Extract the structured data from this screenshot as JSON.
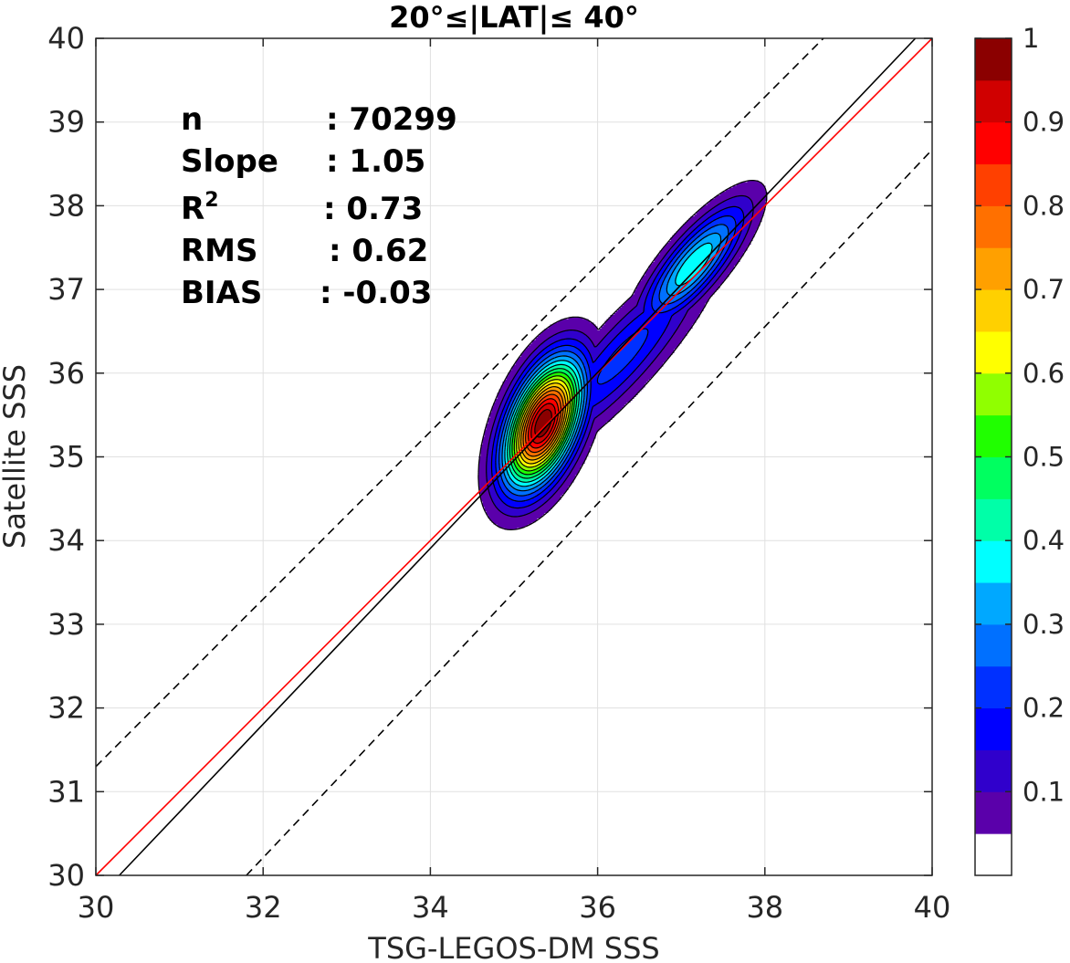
{
  "chart_data": {
    "type": "contour-density",
    "title": "20°≤|LAT|≤ 40°",
    "xlabel": "TSG-LEGOS-DM SSS",
    "ylabel": "Satellite SSS",
    "xlim": [
      30,
      40
    ],
    "ylim": [
      30,
      40
    ],
    "xticks": [
      "30",
      "32",
      "34",
      "36",
      "38",
      "40"
    ],
    "yticks": [
      "30",
      "31",
      "32",
      "33",
      "34",
      "35",
      "36",
      "37",
      "38",
      "39",
      "40"
    ],
    "grid": true,
    "stats": [
      {
        "label": "n",
        "value": ": 70299"
      },
      {
        "label": "Slope",
        "value": ": 1.05"
      },
      {
        "label": "R²",
        "value": ": 0.73"
      },
      {
        "label": "RMS",
        "value": ": 0.62"
      },
      {
        "label": "BIAS",
        "value": ": -0.03"
      }
    ],
    "lines": [
      {
        "kind": "one-to-one",
        "color": "#ff0000",
        "style": "solid",
        "points": [
          [
            30,
            30
          ],
          [
            40,
            40
          ]
        ]
      },
      {
        "kind": "regression",
        "color": "#000000",
        "style": "solid",
        "points": [
          [
            30.28,
            30
          ],
          [
            39.8,
            40
          ]
        ]
      },
      {
        "kind": "upper-bound",
        "color": "#000000",
        "style": "dashed",
        "points": [
          [
            30,
            31.3
          ],
          [
            38.7,
            40
          ]
        ]
      },
      {
        "kind": "lower-bound",
        "color": "#000000",
        "style": "dashed",
        "points": [
          [
            31.8,
            30
          ],
          [
            40,
            38.67
          ]
        ]
      }
    ],
    "density_peaks": [
      {
        "x": 35.35,
        "y": 35.4,
        "peak": 1.0,
        "sigma_major": 0.55,
        "sigma_minor": 0.26,
        "angle_deg": 68
      },
      {
        "x": 37.15,
        "y": 37.3,
        "peak": 0.4,
        "sigma_major": 0.62,
        "sigma_minor": 0.2,
        "angle_deg": 50
      },
      {
        "x": 36.3,
        "y": 36.2,
        "peak": 0.22,
        "sigma_major": 1.0,
        "sigma_minor": 0.25,
        "angle_deg": 48
      }
    ],
    "colorbar": {
      "ticks": [
        "0.1",
        "0.2",
        "0.3",
        "0.4",
        "0.5",
        "0.6",
        "0.7",
        "0.8",
        "0.9",
        "1"
      ],
      "levels": [
        0,
        0.05,
        0.1,
        0.15,
        0.2,
        0.25,
        0.3,
        0.35,
        0.4,
        0.45,
        0.5,
        0.55,
        0.6,
        0.65,
        0.7,
        0.75,
        0.8,
        0.85,
        0.9,
        0.95,
        1.0
      ],
      "colors": [
        "#ffffff",
        "#5a00aa",
        "#3000cc",
        "#0000ff",
        "#0030ff",
        "#0070ff",
        "#00a8ff",
        "#00ffff",
        "#00ffa8",
        "#00ff60",
        "#20ff00",
        "#90ff00",
        "#ffff00",
        "#ffd000",
        "#ffa000",
        "#ff7000",
        "#ff4000",
        "#ff0000",
        "#d00000",
        "#8b0000"
      ]
    }
  }
}
